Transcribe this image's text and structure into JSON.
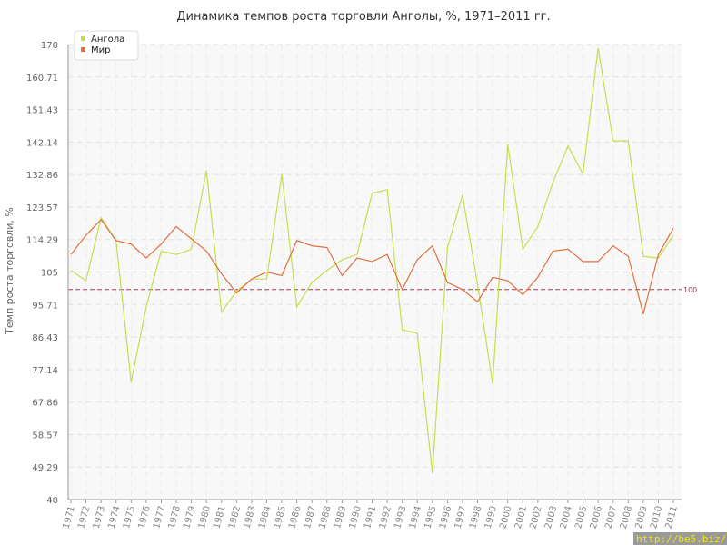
{
  "chart_data": {
    "type": "line",
    "title": "Динамика темпов роста торговли Анголы, %, 1971–2011 гг.",
    "xlabel": "",
    "ylabel": "Темп роста торговли, %",
    "ylim": [
      40,
      170
    ],
    "yticks": [
      "40",
      "49.29",
      "58.57",
      "67.86",
      "77.14",
      "86.43",
      "95.71",
      "105",
      "114.29",
      "123.57",
      "132.86",
      "142.14",
      "151.43",
      "160.71",
      "170"
    ],
    "x": [
      "1971",
      "1972",
      "1973",
      "1974",
      "1975",
      "1976",
      "1977",
      "1978",
      "1979",
      "1980",
      "1981",
      "1982",
      "1983",
      "1984",
      "1985",
      "1986",
      "1987",
      "1988",
      "1989",
      "1990",
      "1991",
      "1992",
      "1993",
      "1994",
      "1995",
      "1996",
      "1997",
      "1998",
      "1999",
      "2000",
      "2001",
      "2002",
      "2003",
      "2004",
      "2005",
      "2006",
      "2007",
      "2008",
      "2009",
      "2010",
      "2011"
    ],
    "series": [
      {
        "name": "Ангола",
        "color": "#c5de4f",
        "values": [
          105.5,
          102.5,
          120.5,
          114,
          73.5,
          95,
          111,
          110,
          111.5,
          134,
          93.5,
          99.5,
          103,
          103,
          133,
          95,
          102,
          105.5,
          108.5,
          110,
          127.5,
          128.5,
          88.5,
          87.5,
          47.5,
          112,
          127,
          101.5,
          73,
          141.5,
          111.5,
          118,
          130.5,
          141,
          133,
          169,
          142.5,
          142.5,
          109.5,
          109,
          115.5
        ]
      },
      {
        "name": "Мир",
        "color": "#e07040",
        "values": [
          110,
          115.5,
          120,
          114,
          113,
          109,
          113,
          118,
          114.5,
          111,
          104.5,
          99,
          103,
          105,
          104,
          114,
          112.5,
          112,
          104,
          109,
          108,
          110,
          100,
          108.5,
          112.5,
          102,
          100,
          96.5,
          103.5,
          102.5,
          98.5,
          103.5,
          111,
          111.5,
          108,
          108,
          112.5,
          109.5,
          93,
          110,
          117.5
        ]
      }
    ],
    "reference_line": {
      "value": 100,
      "label": "100",
      "color": "#a04050"
    },
    "legend": "top-left",
    "grid": true
  },
  "watermark": "http://be5.biz/"
}
